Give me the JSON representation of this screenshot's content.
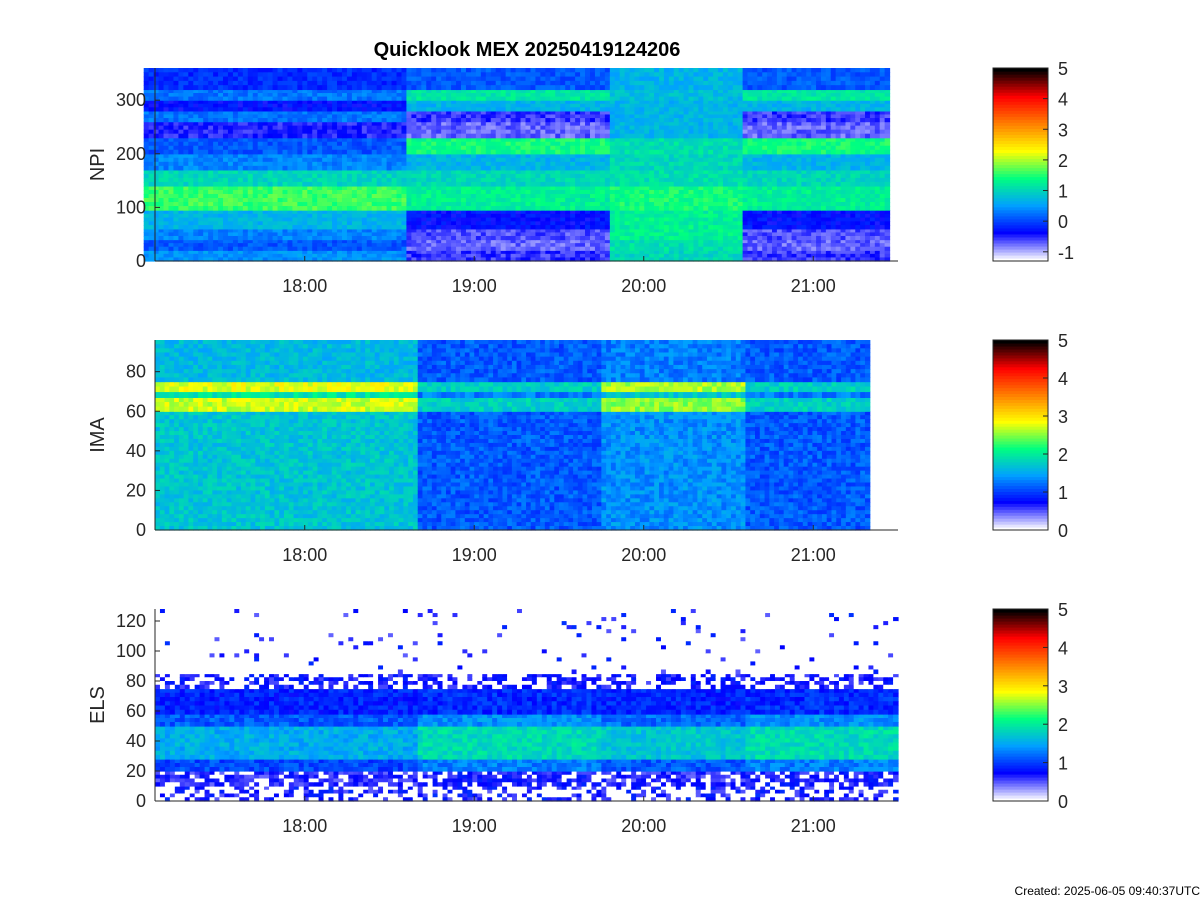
{
  "figure": {
    "title": "Quicklook MEX 20250419124206",
    "footer": "Created: 2025-06-05 09:40:37UTC",
    "colormap": [
      "#ffffff",
      "#0000ff",
      "#00a0ff",
      "#00ff80",
      "#ffff00",
      "#ff8000",
      "#ff0000",
      "#000000"
    ]
  },
  "chart_data": [
    {
      "type": "heatmap",
      "name": "NPI",
      "ylabel": "NPI",
      "xlabel": "",
      "xlim": [
        "17:07",
        "21:30"
      ],
      "x_ticks": [
        "18:00",
        "19:00",
        "20:00",
        "21:00"
      ],
      "ylim": [
        0,
        360
      ],
      "y_ticks": [
        0,
        100,
        200,
        300
      ],
      "data_xrange": [
        "17:03",
        "21:27"
      ],
      "colorbar": {
        "min": -1.3,
        "max": 5,
        "ticks": [
          -1,
          0,
          1,
          2,
          3,
          4,
          5
        ]
      },
      "time_segments": [
        {
          "start": "17:03",
          "end": "18:36",
          "state": "A"
        },
        {
          "start": "18:36",
          "end": "19:48",
          "state": "B"
        },
        {
          "start": "19:48",
          "end": "20:35",
          "state": "C"
        },
        {
          "start": "20:35",
          "end": "21:27",
          "state": "B"
        }
      ],
      "bands": [
        {
          "y0": 0,
          "y1": 20,
          "A": 0.6,
          "B": -0.6,
          "C": 1.3
        },
        {
          "y0": 20,
          "y1": 40,
          "A": 0.2,
          "B": -0.8,
          "C": 1.4
        },
        {
          "y0": 40,
          "y1": 60,
          "A": 0.5,
          "B": -0.7,
          "C": 1.6
        },
        {
          "y0": 60,
          "y1": 95,
          "A": 0.9,
          "B": -0.3,
          "C": 1.6
        },
        {
          "y0": 95,
          "y1": 140,
          "A": 2.0,
          "B": 1.6,
          "C": 1.8
        },
        {
          "y0": 140,
          "y1": 170,
          "A": 1.3,
          "B": 1.3,
          "C": 1.4
        },
        {
          "y0": 170,
          "y1": 200,
          "A": 0.5,
          "B": 0.9,
          "C": 1.3
        },
        {
          "y0": 200,
          "y1": 230,
          "A": 0.2,
          "B": 1.8,
          "C": 1.4
        },
        {
          "y0": 230,
          "y1": 260,
          "A": -0.5,
          "B": -0.8,
          "C": 0.9
        },
        {
          "y0": 260,
          "y1": 280,
          "A": 0.4,
          "B": -0.6,
          "C": 0.9
        },
        {
          "y0": 280,
          "y1": 300,
          "A": -0.3,
          "B": 0.9,
          "C": 0.9
        },
        {
          "y0": 300,
          "y1": 320,
          "A": 0.4,
          "B": 1.5,
          "C": 1.0
        },
        {
          "y0": 320,
          "y1": 360,
          "A": -0.1,
          "B": 0.2,
          "C": 0.9
        }
      ]
    },
    {
      "type": "heatmap",
      "name": "IMA",
      "ylabel": "IMA",
      "xlabel": "",
      "xlim": [
        "17:07",
        "21:30"
      ],
      "x_ticks": [
        "18:00",
        "19:00",
        "20:00",
        "21:00"
      ],
      "ylim": [
        0,
        96
      ],
      "y_ticks": [
        0,
        20,
        40,
        60,
        80
      ],
      "data_xrange": [
        "17:07",
        "21:20"
      ],
      "colorbar": {
        "min": 0,
        "max": 5,
        "ticks": [
          0,
          1,
          2,
          3,
          4,
          5
        ]
      },
      "time_segments": [
        {
          "start": "17:07",
          "end": "18:40",
          "state": "A"
        },
        {
          "start": "18:40",
          "end": "19:45",
          "state": "B"
        },
        {
          "start": "19:45",
          "end": "20:36",
          "state": "C"
        },
        {
          "start": "20:36",
          "end": "21:20",
          "state": "B"
        }
      ],
      "bands": [
        {
          "y0": 0,
          "y1": 60,
          "A": 1.9,
          "B": 1.2,
          "C": 1.5
        },
        {
          "y0": 60,
          "y1": 67,
          "A": 3.1,
          "B": 2.0,
          "C": 2.9
        },
        {
          "y0": 67,
          "y1": 70,
          "A": 2.2,
          "B": 1.4,
          "C": 1.9
        },
        {
          "y0": 70,
          "y1": 75,
          "A": 3.2,
          "B": 2.0,
          "C": 3.0
        },
        {
          "y0": 75,
          "y1": 96,
          "A": 1.8,
          "B": 1.2,
          "C": 1.4
        }
      ]
    },
    {
      "type": "heatmap",
      "name": "ELS",
      "ylabel": "ELS",
      "xlabel": "",
      "xlim": [
        "17:07",
        "21:30"
      ],
      "x_ticks": [
        "18:00",
        "19:00",
        "20:00",
        "21:00"
      ],
      "ylim": [
        0,
        128
      ],
      "y_ticks": [
        0,
        20,
        40,
        60,
        80,
        100,
        120
      ],
      "data_xrange": [
        "17:07",
        "21:30"
      ],
      "colorbar": {
        "min": 0,
        "max": 5,
        "ticks": [
          0,
          1,
          2,
          3,
          4,
          5
        ]
      },
      "time_segments": [
        {
          "start": "17:07",
          "end": "18:40",
          "state": "A"
        },
        {
          "start": "18:40",
          "end": "19:45",
          "state": "B"
        },
        {
          "start": "19:45",
          "end": "20:36",
          "state": "C"
        },
        {
          "start": "20:36",
          "end": "21:30",
          "state": "B"
        }
      ],
      "bands": [
        {
          "y0": 0,
          "y1": 10,
          "A": 0.0,
          "B": 0.0,
          "C": 0.0,
          "noise": 0.55
        },
        {
          "y0": 10,
          "y1": 20,
          "A": 0.6,
          "B": 0.7,
          "C": 0.6,
          "noise": 0.25
        },
        {
          "y0": 20,
          "y1": 28,
          "A": 1.1,
          "B": 1.4,
          "C": 1.2
        },
        {
          "y0": 28,
          "y1": 50,
          "A": 1.7,
          "B": 2.1,
          "C": 1.9
        },
        {
          "y0": 50,
          "y1": 58,
          "A": 1.2,
          "B": 1.5,
          "C": 1.3
        },
        {
          "y0": 58,
          "y1": 75,
          "A": 0.9,
          "B": 0.95,
          "C": 0.9
        },
        {
          "y0": 75,
          "y1": 85,
          "A": 0.7,
          "B": 0.7,
          "C": 0.7,
          "noise": 0.45
        },
        {
          "y0": 85,
          "y1": 128,
          "A": 0.0,
          "B": 0.0,
          "C": 0.0,
          "noise": 0.96
        }
      ]
    }
  ]
}
